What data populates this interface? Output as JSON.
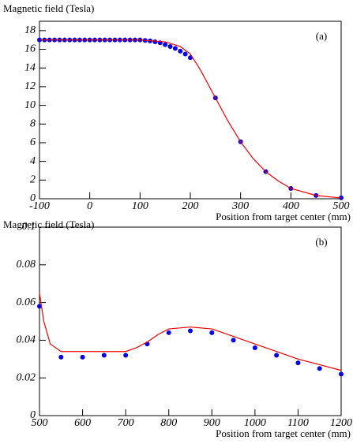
{
  "chart_data": [
    {
      "type": "scatter",
      "label": "(a)",
      "ylabel": "Magnetic field (Tesla)",
      "xlabel": "Position from target center (mm)",
      "xlim": [
        -100,
        500
      ],
      "xticks": [
        -100,
        0,
        100,
        200,
        300,
        400,
        500
      ],
      "ylim": [
        0,
        19
      ],
      "yticks": [
        0,
        2,
        4,
        6,
        8,
        10,
        12,
        14,
        16,
        18
      ],
      "series": [
        {
          "mode": "markers",
          "color": "#0000ee",
          "x": [
            -100,
            -90,
            -80,
            -70,
            -60,
            -50,
            -40,
            -30,
            -20,
            -10,
            0,
            10,
            20,
            30,
            40,
            50,
            60,
            70,
            80,
            90,
            100,
            110,
            120,
            130,
            140,
            150,
            160,
            170,
            180,
            190,
            200,
            250,
            300,
            350,
            400,
            450,
            500
          ],
          "values": [
            17,
            17,
            17,
            17,
            17,
            17,
            17,
            17,
            17,
            17,
            17,
            17,
            17,
            17,
            17,
            17,
            17,
            17,
            17,
            17,
            17,
            16.95,
            16.9,
            16.8,
            16.7,
            16.5,
            16.3,
            16.1,
            15.8,
            15.5,
            15.1,
            10.8,
            6.1,
            2.9,
            1.1,
            0.35,
            0.1
          ]
        },
        {
          "mode": "line",
          "color": "#ee0000",
          "x": [
            -100,
            100,
            150,
            180,
            200,
            220,
            250,
            275,
            300,
            325,
            350,
            375,
            400,
            450,
            500
          ],
          "values": [
            17,
            17,
            16.8,
            16.3,
            15.5,
            13.8,
            10.8,
            8.3,
            6.1,
            4.3,
            2.9,
            1.9,
            1.1,
            0.35,
            0.08
          ]
        }
      ]
    },
    {
      "type": "scatter",
      "label": "(b)",
      "ylabel": "Magnetic field (Tesla)",
      "xlabel": "Position from target center (mm)",
      "xlim": [
        500,
        1200
      ],
      "xticks": [
        500,
        600,
        700,
        800,
        900,
        1000,
        1100,
        1200
      ],
      "ylim": [
        0,
        0.1
      ],
      "yticks": [
        0,
        0.02,
        0.04,
        0.06,
        0.08,
        0.1
      ],
      "series": [
        {
          "mode": "markers",
          "color": "#0000ee",
          "x": [
            500,
            550,
            600,
            650,
            700,
            750,
            800,
            850,
            900,
            950,
            1000,
            1050,
            1100,
            1150,
            1200
          ],
          "values": [
            0.058,
            0.031,
            0.031,
            0.032,
            0.032,
            0.038,
            0.044,
            0.045,
            0.044,
            0.04,
            0.036,
            0.032,
            0.028,
            0.025,
            0.022
          ]
        },
        {
          "mode": "line",
          "color": "#ee0000",
          "x": [
            500,
            510,
            525,
            550,
            600,
            650,
            700,
            725,
            750,
            775,
            800,
            850,
            900,
            950,
            1000,
            1050,
            1100,
            1150,
            1200
          ],
          "values": [
            0.065,
            0.05,
            0.038,
            0.034,
            0.034,
            0.034,
            0.034,
            0.036,
            0.039,
            0.043,
            0.046,
            0.047,
            0.046,
            0.042,
            0.038,
            0.034,
            0.03,
            0.027,
            0.024
          ]
        }
      ]
    }
  ]
}
